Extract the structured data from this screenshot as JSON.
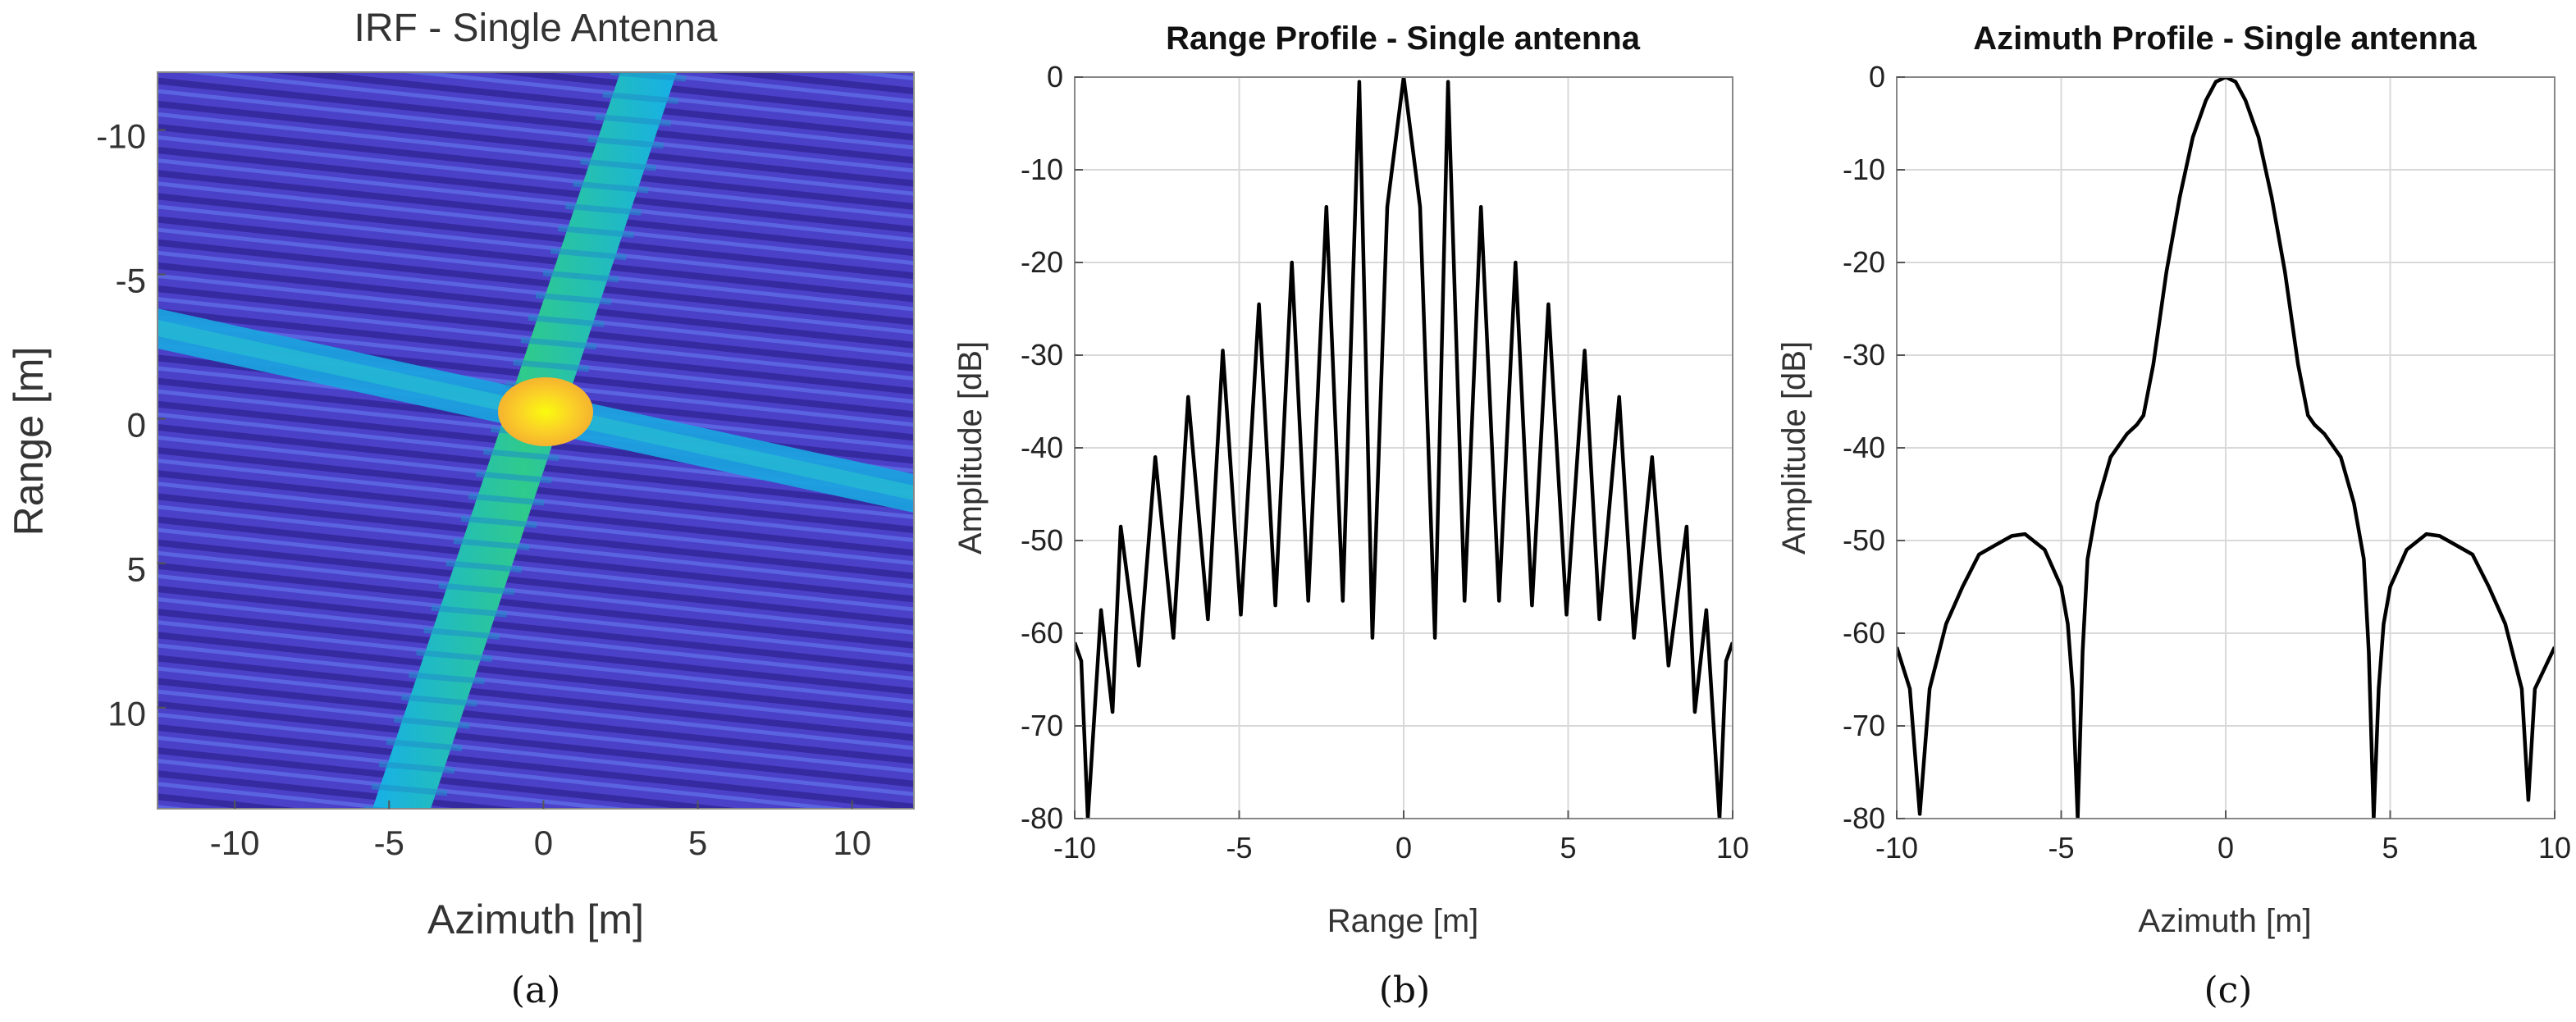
{
  "chart_data": [
    {
      "type": "heatmap",
      "title": "IRF - Single Antenna",
      "xlabel": "Azimuth [m]",
      "ylabel": "Range [m]",
      "xlim": [
        -12.5,
        12
      ],
      "ylim": [
        -12,
        13.5
      ],
      "y_reversed": true,
      "xticks": [
        -10,
        -5,
        0,
        5,
        10
      ],
      "yticks": [
        -10,
        -5,
        0,
        5,
        10
      ],
      "xtick_labels": [
        "-10",
        "-5",
        "0",
        "5",
        "10"
      ],
      "ytick_labels": [
        "-10",
        "-5",
        "0",
        "5",
        "10"
      ],
      "colormap": [
        "#3e26a8",
        "#2f6fe4",
        "#12bee6",
        "#35c98b",
        "#a3c93a",
        "#f5b32f",
        "#f9fb0e"
      ],
      "peak": {
        "azimuth": 0,
        "range": 0
      },
      "features": {
        "range_ridge": {
          "azimuth_at_top": 4.5,
          "azimuth_at_bottom": -4.5
        },
        "azimuth_ridge": {
          "range_at_left": -3,
          "range_at_right": 2.5
        }
      },
      "caption": "(a)"
    },
    {
      "type": "line",
      "title": "Range Profile - Single antenna",
      "xlabel": "Range [m]",
      "ylabel": "Amplitude [dB]",
      "xlim": [
        -10,
        10
      ],
      "ylim": [
        -80,
        0
      ],
      "grid": true,
      "xticks": [
        -10,
        -5,
        0,
        5,
        10
      ],
      "yticks": [
        0,
        -10,
        -20,
        -30,
        -40,
        -50,
        -60,
        -70,
        -80
      ],
      "xtick_labels": [
        "-10",
        "-5",
        "0",
        "5",
        "10"
      ],
      "ytick_labels": [
        "0",
        "-10",
        "-20",
        "-30",
        "-40",
        "-50",
        "-60",
        "-70",
        "-80"
      ],
      "series": [
        {
          "name": "Range profile",
          "x": [
            -10,
            -9.8,
            -9.6,
            -9.2,
            -8.85,
            -8.6,
            -8.05,
            -7.55,
            -7.0,
            -6.55,
            -5.95,
            -5.5,
            -4.95,
            -4.4,
            -3.9,
            -3.4,
            -2.9,
            -2.35,
            -1.85,
            -1.35,
            -0.95,
            -0.5,
            0,
            0.5,
            0.95,
            1.35,
            1.85,
            2.35,
            2.9,
            3.4,
            3.9,
            4.4,
            4.95,
            5.5,
            5.95,
            6.55,
            7.0,
            7.55,
            8.05,
            8.6,
            8.85,
            9.2,
            9.6,
            9.8,
            10
          ],
          "y": [
            -61,
            -63,
            -80,
            -57.5,
            -68.5,
            -48.5,
            -63.5,
            -41,
            -60.5,
            -34.5,
            -58.5,
            -29.5,
            -58,
            -24.5,
            -57,
            -20,
            -56.5,
            -14,
            -56.5,
            -0.5,
            -60.5,
            -14,
            0,
            -14,
            -60.5,
            -0.5,
            -56.5,
            -14,
            -56.5,
            -20,
            -57,
            -24.5,
            -58,
            -29.5,
            -58.5,
            -34.5,
            -60.5,
            -41,
            -63.5,
            -48.5,
            -68.5,
            -57.5,
            -80,
            -63,
            -61
          ]
        }
      ],
      "caption": "(b)"
    },
    {
      "type": "line",
      "title": "Azimuth Profile - Single antenna",
      "xlabel": "Azimuth [m]",
      "ylabel": "Amplitude [dB]",
      "xlim": [
        -10,
        10
      ],
      "ylim": [
        -80,
        0
      ],
      "grid": true,
      "xticks": [
        -10,
        -5,
        0,
        5,
        10
      ],
      "yticks": [
        0,
        -10,
        -20,
        -30,
        -40,
        -50,
        -60,
        -70,
        -80
      ],
      "xtick_labels": [
        "-10",
        "-5",
        "0",
        "5",
        "10"
      ],
      "ytick_labels": [
        "0",
        "-10",
        "-20",
        "-30",
        "-40",
        "-50",
        "-60",
        "-70",
        "-80"
      ],
      "series": [
        {
          "name": "Azimuth profile",
          "x": [
            -10,
            -9.6,
            -9.3,
            -9.0,
            -8.5,
            -8.0,
            -7.5,
            -7.0,
            -6.5,
            -6.1,
            -5.5,
            -5.0,
            -4.8,
            -4.65,
            -4.5,
            -4.35,
            -4.2,
            -3.9,
            -3.5,
            -3.0,
            -2.7,
            -2.5,
            -2.2,
            -1.8,
            -1.4,
            -1.0,
            -0.6,
            -0.3,
            0,
            0.3,
            0.6,
            1.0,
            1.4,
            1.8,
            2.2,
            2.5,
            2.7,
            3.0,
            3.5,
            3.9,
            4.2,
            4.35,
            4.5,
            4.65,
            4.8,
            5.0,
            5.5,
            6.1,
            6.5,
            7.0,
            7.5,
            8.0,
            8.5,
            9.0,
            9.2,
            9.4,
            10
          ],
          "y": [
            -61.5,
            -66,
            -79.5,
            -66,
            -59,
            -55,
            -51.5,
            -50.5,
            -49.5,
            -49.3,
            -51,
            -55,
            -59,
            -66,
            -80,
            -62,
            -52,
            -46,
            -41,
            -38.5,
            -37.5,
            -36.5,
            -31,
            -21,
            -13,
            -6.5,
            -2.5,
            -0.5,
            0,
            -0.5,
            -2.5,
            -6.5,
            -13,
            -21,
            -31,
            -36.5,
            -37.5,
            -38.5,
            -41,
            -46,
            -52,
            -62,
            -80,
            -66,
            -59,
            -55,
            -51,
            -49.3,
            -49.5,
            -50.5,
            -51.5,
            -55,
            -59,
            -66,
            -78,
            -66,
            -61.5
          ]
        }
      ],
      "caption": "(c)"
    }
  ]
}
